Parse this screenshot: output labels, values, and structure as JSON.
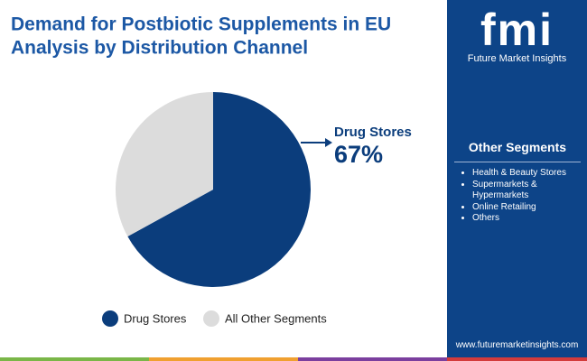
{
  "chart_data": {
    "type": "pie",
    "title": "Demand for Postbiotic Supplements in EU",
    "subtitle": "Analysis by Distribution Channel",
    "categories": [
      "Drug Stores",
      "All Other Segments"
    ],
    "values": [
      67,
      33
    ],
    "value_labels": [
      "67%",
      null
    ],
    "colors": [
      "#0b3d7c",
      "#dcdcdc"
    ]
  },
  "sidebar": {
    "logo": "fmi",
    "brand": "Future Market Insights",
    "heading": "Other Segments",
    "items": [
      "Health & Beauty Stores",
      "Supermarkets & Hypermarkets",
      "Online Retailing",
      "Others"
    ],
    "website": "www.futuremarketinsights.com"
  }
}
